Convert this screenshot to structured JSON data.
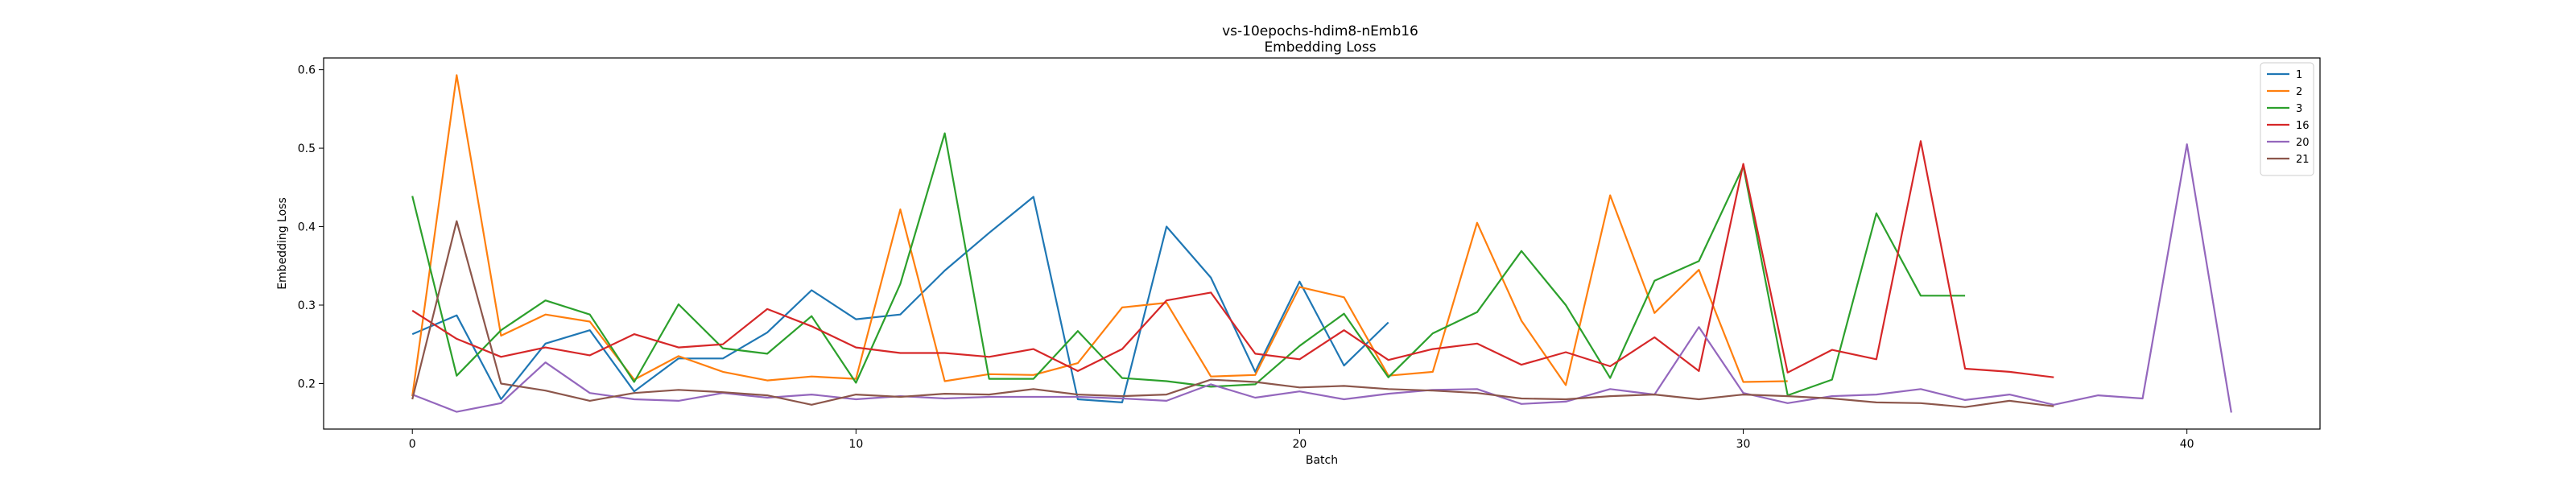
{
  "chart_data": {
    "type": "line",
    "title": "vs-10epochs-hdim8-nEmb16",
    "subtitle": "Embedding Loss",
    "xlabel": "Batch",
    "ylabel": "Embedding Loss",
    "xlim": [
      -2,
      43
    ],
    "ylim": [
      0.142,
      0.615
    ],
    "xticks": [
      0,
      10,
      20,
      30,
      40
    ],
    "yticks": [
      0.2,
      0.3,
      0.4,
      0.5,
      0.6
    ],
    "ytick_labels": [
      "0.2",
      "0.3",
      "0.4",
      "0.5",
      "0.6"
    ],
    "grid": false,
    "legend_position": "top-right",
    "series": [
      {
        "name": "1",
        "color": "#1f77b4",
        "values": [
          0.263,
          0.287,
          0.18,
          0.251,
          0.268,
          0.19,
          0.232,
          0.232,
          0.265,
          0.319,
          0.282,
          0.288,
          0.344,
          0.392,
          0.438,
          0.18,
          0.176,
          0.4,
          0.335,
          0.215,
          0.33,
          0.223,
          0.278
        ]
      },
      {
        "name": "2",
        "color": "#ff7f0e",
        "values": [
          0.184,
          0.593,
          0.261,
          0.288,
          0.279,
          0.205,
          0.235,
          0.215,
          0.204,
          0.209,
          0.206,
          0.422,
          0.203,
          0.212,
          0.211,
          0.226,
          0.297,
          0.303,
          0.209,
          0.211,
          0.323,
          0.31,
          0.21,
          0.215,
          0.405,
          0.28,
          0.198,
          0.44,
          0.29,
          0.345,
          0.202,
          0.203
        ]
      },
      {
        "name": "3",
        "color": "#2ca02c",
        "values": [
          0.439,
          0.21,
          0.268,
          0.306,
          0.288,
          0.202,
          0.301,
          0.245,
          0.238,
          0.286,
          0.201,
          0.327,
          0.519,
          0.206,
          0.206,
          0.267,
          0.207,
          0.203,
          0.196,
          0.199,
          0.248,
          0.289,
          0.208,
          0.264,
          0.291,
          0.369,
          0.3,
          0.207,
          0.331,
          0.356,
          0.477,
          0.185,
          0.205,
          0.417,
          0.312,
          0.312
        ]
      },
      {
        "name": "16",
        "color": "#d62728",
        "values": [
          0.293,
          0.257,
          0.234,
          0.246,
          0.236,
          0.263,
          0.246,
          0.25,
          0.295,
          0.273,
          0.246,
          0.239,
          0.239,
          0.234,
          0.244,
          0.216,
          0.244,
          0.306,
          0.316,
          0.238,
          0.231,
          0.268,
          0.23,
          0.244,
          0.251,
          0.224,
          0.24,
          0.222,
          0.259,
          0.216,
          0.48,
          0.214,
          0.243,
          0.231,
          0.509,
          0.219,
          0.215,
          0.208
        ]
      },
      {
        "name": "20",
        "color": "#9467bd",
        "values": [
          0.186,
          0.164,
          0.175,
          0.227,
          0.188,
          0.18,
          0.178,
          0.188,
          0.182,
          0.186,
          0.18,
          0.184,
          0.181,
          0.183,
          0.183,
          0.183,
          0.181,
          0.178,
          0.199,
          0.182,
          0.19,
          0.18,
          0.187,
          0.192,
          0.193,
          0.174,
          0.177,
          0.193,
          0.186,
          0.272,
          0.188,
          0.175,
          0.184,
          0.186,
          0.193,
          0.179,
          0.186,
          0.173,
          0.185,
          0.181,
          0.505,
          0.163
        ]
      },
      {
        "name": "21",
        "color": "#8c564b",
        "values": [
          0.18,
          0.407,
          0.2,
          0.191,
          0.178,
          0.188,
          0.192,
          0.189,
          0.185,
          0.173,
          0.186,
          0.183,
          0.187,
          0.186,
          0.193,
          0.186,
          0.184,
          0.186,
          0.205,
          0.202,
          0.195,
          0.197,
          0.193,
          0.191,
          0.188,
          0.181,
          0.18,
          0.184,
          0.186,
          0.18,
          0.186,
          0.184,
          0.181,
          0.176,
          0.175,
          0.17,
          0.178,
          0.171
        ]
      }
    ]
  }
}
